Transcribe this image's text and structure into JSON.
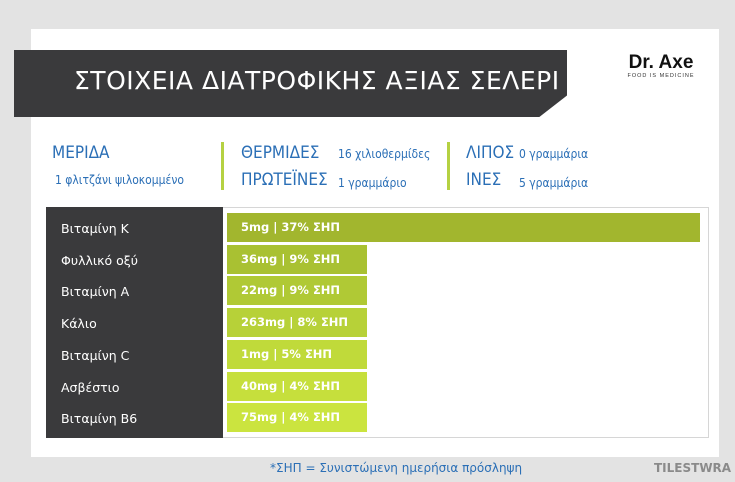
{
  "title": "ΣΤΟΙΧΕΙΑ ΔΙΑΤΡΟΦΙΚΗΣ ΑΞΙΑΣ ΣΕΛΕΡΙ",
  "logo": {
    "name": "Dr. Axe",
    "tagline": "FOOD IS MEDICINE"
  },
  "info": {
    "serving": {
      "label": "ΜΕΡΙΔΑ",
      "value": "1 φλιτζάνι ψιλοκομμένο"
    },
    "calories": {
      "label": "ΘΕΡΜΙΔΕΣ",
      "value": "16 χιλιοθερμίδες"
    },
    "protein": {
      "label": "ΠΡΩΤΕΪΝΕΣ",
      "value": "1 γραμμάριο"
    },
    "fat": {
      "label": "ΛΙΠΟΣ",
      "value": "0 γραμμάρια"
    },
    "fiber": {
      "label": "ΙΝΕΣ",
      "value": "5 γραμμάρια"
    }
  },
  "chart_data": {
    "type": "bar",
    "orientation": "horizontal",
    "categories": [
      "Βιταμίνη Κ",
      "Φυλλικό οξύ",
      "Βιταμίνη Α",
      "Κάλιο",
      "Βιταμίνη C",
      "Ασβέστιο",
      "Βιταμίνη Β6"
    ],
    "values": [
      37,
      9,
      9,
      8,
      5,
      4,
      4
    ],
    "data_labels": [
      "5mg | 37% ΣΗΠ",
      "36mg | 9% ΣΗΠ",
      "22mg | 9% ΣΗΠ",
      "263mg | 8% ΣΗΠ",
      "1mg | 5% ΣΗΠ",
      "40mg | 4% ΣΗΠ",
      "75mg | 4% ΣΗΠ"
    ],
    "colors": [
      "#a2b62e",
      "#a9c132",
      "#b0c935",
      "#b7d138",
      "#c0da3a",
      "#c6df3c",
      "#cbe43f"
    ]
  },
  "footnote": "*ΣΗΠ = Συνιστώμενη ημερήσια πρόσληψη",
  "watermark": "TILESTWRA"
}
